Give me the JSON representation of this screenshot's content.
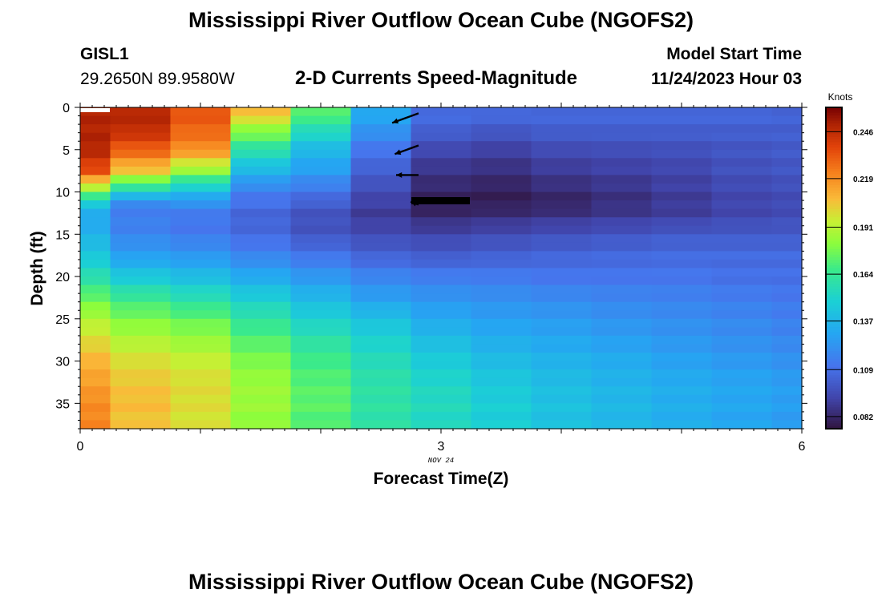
{
  "title": "Mississippi River Outflow Ocean Cube (NGOFS2)",
  "bottom_title": "Mississippi River Outflow Ocean Cube (NGOFS2)",
  "station": {
    "id": "GISL1",
    "coords": "29.2650N  89.9580W"
  },
  "subtitle": "2-D Currents Speed-Magnitude",
  "model": {
    "label": "Model Start Time",
    "value": "11/24/2023 Hour 03"
  },
  "date_label": "NOV 24",
  "chart_data": {
    "type": "heatmap",
    "title": "2-D Currents Speed-Magnitude",
    "xlabel": "Forecast Time(Z)",
    "ylabel": "Depth (ft)",
    "colorbar_label": "Knots",
    "xlim": [
      0,
      6
    ],
    "ylim": [
      0,
      38
    ],
    "y_inverted": true,
    "x_ticks": [
      0,
      3,
      6
    ],
    "y_ticks": [
      0,
      5,
      10,
      15,
      20,
      25,
      30,
      35
    ],
    "colorbar_ticks": [
      0.082,
      0.109,
      0.137,
      0.164,
      0.191,
      0.219,
      0.246
    ],
    "colorbar_range": [
      0.075,
      0.26
    ],
    "time_columns": [
      0.0,
      0.5,
      1.0,
      1.5,
      2.0,
      2.5,
      3.0,
      3.5,
      4.0,
      4.5,
      5.0,
      5.5,
      6.0
    ],
    "depth_profile_ft": [
      0,
      2.5,
      5,
      7.5,
      10,
      11.5,
      13,
      15,
      17.5,
      20,
      22.5,
      25,
      27.5,
      30,
      32.5,
      35,
      38
    ],
    "speed_knots": [
      [
        0.25,
        0.25,
        0.235,
        0.215,
        0.178,
        0.135,
        0.11,
        0.11,
        0.108,
        0.108,
        0.108,
        0.108,
        0.106
      ],
      [
        0.25,
        0.247,
        0.23,
        0.185,
        0.158,
        0.125,
        0.105,
        0.102,
        0.104,
        0.104,
        0.104,
        0.104,
        0.104
      ],
      [
        0.25,
        0.232,
        0.22,
        0.16,
        0.138,
        0.112,
        0.095,
        0.092,
        0.096,
        0.097,
        0.098,
        0.1,
        0.102
      ],
      [
        0.235,
        0.205,
        0.185,
        0.138,
        0.128,
        0.104,
        0.088,
        0.086,
        0.09,
        0.092,
        0.094,
        0.098,
        0.1
      ],
      [
        0.18,
        0.15,
        0.14,
        0.115,
        0.112,
        0.096,
        0.082,
        0.08,
        0.084,
        0.087,
        0.091,
        0.095,
        0.097
      ],
      [
        0.145,
        0.118,
        0.122,
        0.11,
        0.103,
        0.092,
        0.08,
        0.08,
        0.082,
        0.086,
        0.09,
        0.094,
        0.096
      ],
      [
        0.13,
        0.115,
        0.112,
        0.105,
        0.098,
        0.09,
        0.084,
        0.086,
        0.088,
        0.09,
        0.092,
        0.095,
        0.097
      ],
      [
        0.136,
        0.118,
        0.114,
        0.108,
        0.1,
        0.096,
        0.094,
        0.096,
        0.098,
        0.1,
        0.102,
        0.102,
        0.102
      ],
      [
        0.145,
        0.128,
        0.125,
        0.118,
        0.112,
        0.105,
        0.102,
        0.104,
        0.106,
        0.107,
        0.108,
        0.108,
        0.108
      ],
      [
        0.158,
        0.145,
        0.14,
        0.132,
        0.125,
        0.118,
        0.115,
        0.114,
        0.112,
        0.112,
        0.112,
        0.11,
        0.11
      ],
      [
        0.175,
        0.165,
        0.158,
        0.148,
        0.138,
        0.128,
        0.124,
        0.122,
        0.12,
        0.118,
        0.117,
        0.115,
        0.113
      ],
      [
        0.19,
        0.18,
        0.175,
        0.162,
        0.15,
        0.142,
        0.132,
        0.128,
        0.126,
        0.123,
        0.121,
        0.119,
        0.116
      ],
      [
        0.2,
        0.19,
        0.185,
        0.172,
        0.16,
        0.15,
        0.14,
        0.134,
        0.131,
        0.128,
        0.125,
        0.122,
        0.119
      ],
      [
        0.21,
        0.2,
        0.195,
        0.18,
        0.168,
        0.156,
        0.147,
        0.14,
        0.136,
        0.133,
        0.129,
        0.126,
        0.123
      ],
      [
        0.215,
        0.205,
        0.2,
        0.185,
        0.172,
        0.16,
        0.152,
        0.145,
        0.14,
        0.136,
        0.133,
        0.13,
        0.127
      ],
      [
        0.22,
        0.208,
        0.2,
        0.186,
        0.174,
        0.161,
        0.155,
        0.148,
        0.142,
        0.138,
        0.134,
        0.131,
        0.128
      ],
      [
        0.222,
        0.205,
        0.198,
        0.182,
        0.17,
        0.16,
        0.153,
        0.148,
        0.142,
        0.138,
        0.134,
        0.13,
        0.126
      ]
    ],
    "vectors": [
      {
        "time": 3.0,
        "depth": 0.7,
        "direction": "WSW",
        "length": 0.5
      },
      {
        "time": 3.0,
        "depth": 4.5,
        "direction": "WSW",
        "length": 0.45
      },
      {
        "time": 3.0,
        "depth": 8.0,
        "direction": "W",
        "length": 0.4
      },
      {
        "time": 3.0,
        "depth": 11.5,
        "direction": "WNW",
        "length": 0.15
      }
    ]
  }
}
